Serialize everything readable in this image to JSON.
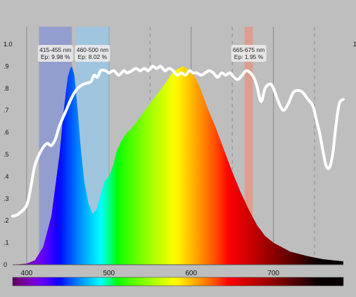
{
  "chart_data": {
    "type": "line",
    "title": "",
    "xlabel": "",
    "ylabel": "",
    "xlim": [
      383,
      785
    ],
    "ylim": [
      0,
      1.0
    ],
    "x_ticks": [
      "400",
      "500",
      "600",
      "700"
    ],
    "y_ticks": [
      "0",
      ".1",
      ".2",
      ".3",
      ".4",
      ".5",
      ".6",
      ".7",
      ".8",
      ".9",
      "1.0"
    ],
    "right_axis_top_label": "1",
    "grid": true,
    "bands": [
      {
        "range": [
          415,
          455
        ],
        "line1": "415-455 nm",
        "line2": "Ep: 9.98 %",
        "color": "#8e9ad0"
      },
      {
        "range": [
          460,
          500
        ],
        "line1": "460-500 nm",
        "line2": "Ep: 8.02 %",
        "color": "#9cc6e2"
      },
      {
        "range": [
          665,
          675
        ],
        "line1": "665-675 nm",
        "line2": "Ep: 1.95 %",
        "color": "#e39a86"
      }
    ],
    "series": [
      {
        "type": "area",
        "color_mode": "spectrum",
        "x": [
          383,
          400,
          410,
          420,
          430,
          440,
          445,
          450,
          453,
          455,
          458,
          462,
          466,
          470,
          475,
          480,
          485,
          490,
          495,
          500,
          505,
          510,
          515,
          520,
          530,
          540,
          550,
          560,
          570,
          575,
          580,
          585,
          590,
          595,
          600,
          605,
          610,
          615,
          620,
          630,
          640,
          650,
          660,
          670,
          680,
          690,
          700,
          710,
          720,
          740,
          760,
          785
        ],
        "y": [
          0.0,
          0.005,
          0.02,
          0.08,
          0.22,
          0.5,
          0.7,
          0.85,
          0.89,
          0.9,
          0.86,
          0.7,
          0.52,
          0.38,
          0.28,
          0.23,
          0.25,
          0.32,
          0.38,
          0.4,
          0.45,
          0.52,
          0.56,
          0.59,
          0.63,
          0.68,
          0.73,
          0.78,
          0.83,
          0.86,
          0.88,
          0.89,
          0.9,
          0.89,
          0.87,
          0.85,
          0.81,
          0.76,
          0.71,
          0.62,
          0.52,
          0.42,
          0.33,
          0.25,
          0.18,
          0.13,
          0.1,
          0.08,
          0.06,
          0.04,
          0.025,
          0.015
        ]
      },
      {
        "type": "line",
        "color": "#ffffff",
        "x": [
          383,
          390,
          400,
          405,
          410,
          418,
          425,
          430,
          435,
          440,
          448,
          455,
          462,
          470,
          478,
          482,
          486,
          490,
          496,
          500,
          506,
          512,
          518,
          522,
          528,
          533,
          538,
          543,
          548,
          553,
          558,
          563,
          568,
          573,
          578,
          583,
          588,
          593,
          598,
          602,
          607,
          612,
          617,
          622,
          627,
          632,
          637,
          642,
          647,
          652,
          657,
          662,
          667,
          672,
          676,
          680,
          685,
          690,
          696,
          700,
          706,
          712,
          718,
          724,
          730,
          736,
          742,
          748,
          752,
          756,
          760,
          764,
          768,
          772,
          776,
          780,
          785
        ],
        "y": [
          0.22,
          0.23,
          0.27,
          0.35,
          0.45,
          0.52,
          0.55,
          0.54,
          0.57,
          0.63,
          0.7,
          0.76,
          0.8,
          0.82,
          0.83,
          0.86,
          0.85,
          0.88,
          0.88,
          0.87,
          0.88,
          0.86,
          0.88,
          0.87,
          0.88,
          0.89,
          0.88,
          0.89,
          0.88,
          0.9,
          0.89,
          0.9,
          0.88,
          0.89,
          0.88,
          0.86,
          0.87,
          0.86,
          0.88,
          0.87,
          0.87,
          0.86,
          0.87,
          0.88,
          0.87,
          0.85,
          0.87,
          0.86,
          0.87,
          0.85,
          0.84,
          0.86,
          0.88,
          0.87,
          0.85,
          0.81,
          0.74,
          0.8,
          0.82,
          0.8,
          0.74,
          0.7,
          0.73,
          0.78,
          0.79,
          0.78,
          0.75,
          0.72,
          0.66,
          0.6,
          0.52,
          0.45,
          0.44,
          0.5,
          0.63,
          0.73,
          0.75
        ]
      }
    ],
    "colorbar": {
      "range": [
        383,
        785
      ]
    }
  }
}
